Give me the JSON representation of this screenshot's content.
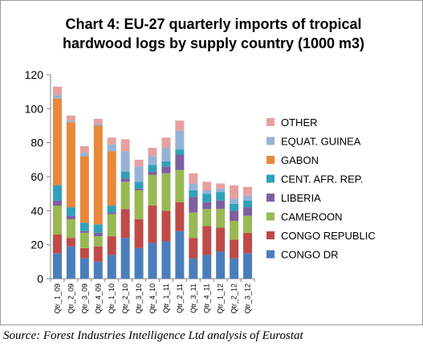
{
  "chart_data": {
    "type": "bar",
    "stacked": true,
    "title_lines": [
      "Chart 4: EU-27 quarterly imports of tropical",
      "hardwood logs by supply country (1000 m3)"
    ],
    "xlabel": "",
    "ylabel": "",
    "ylim": [
      0,
      120
    ],
    "yticks": [
      0,
      20,
      40,
      60,
      80,
      100,
      120
    ],
    "grid": false,
    "legend_position": "right",
    "categories": [
      "Qtr_1_09",
      "Qtr_2_09",
      "Qtr_3_09",
      "Qtr_4_09",
      "Qtr_1_10",
      "Qtr_2_10",
      "Qtr_3_10",
      "Qtr_4_10",
      "Qtr_1_11",
      "Qtr_2_11",
      "Qtr_3_11",
      "Qtr_4_11",
      "Qtr_1_12",
      "Qtr_2_12",
      "Qtr_3_12"
    ],
    "series": [
      {
        "name": "CONGO DR",
        "color": "#4a7ebb",
        "values": [
          15,
          19,
          12,
          10,
          14,
          24,
          18,
          21,
          22,
          28,
          12,
          14,
          16,
          12,
          15
        ]
      },
      {
        "name": "CONGO REPUBLIC",
        "color": "#be4b48",
        "values": [
          11,
          5,
          6,
          9,
          11,
          17,
          17,
          22,
          18,
          17,
          12,
          17,
          14,
          11,
          12
        ]
      },
      {
        "name": "CAMEROON",
        "color": "#98b954",
        "values": [
          17,
          11,
          9,
          6,
          13,
          16,
          17,
          18,
          22,
          19,
          15,
          10,
          11,
          11,
          10
        ]
      },
      {
        "name": "LIBERIA",
        "color": "#7d60a0",
        "values": [
          3,
          2,
          1,
          2,
          1,
          2,
          1,
          2,
          4,
          9,
          9,
          4,
          5,
          6,
          5
        ]
      },
      {
        "name": "CENT. AFR. REP.",
        "color": "#31a0b8",
        "values": [
          9,
          5,
          5,
          5,
          4,
          4,
          4,
          4,
          3,
          3,
          4,
          5,
          5,
          4,
          4
        ]
      },
      {
        "name": "GABON",
        "color": "#e8883a",
        "values": [
          51,
          50,
          39,
          58,
          32,
          0,
          0,
          0,
          0,
          0,
          0,
          0,
          0,
          0,
          0
        ]
      },
      {
        "name": "EQUAT. GUINEA",
        "color": "#95b3d7",
        "values": [
          2,
          1,
          2,
          1,
          4,
          12,
          9,
          5,
          8,
          11,
          4,
          2,
          2,
          3,
          3
        ]
      },
      {
        "name": "OTHER",
        "color": "#e6a0a0",
        "values": [
          5,
          3,
          4,
          3,
          4,
          7,
          4,
          5,
          6,
          6,
          6,
          5,
          3,
          8,
          5
        ]
      }
    ]
  },
  "source": "Source: Forest Industries Intelligence Ltd analysis of Eurostat"
}
